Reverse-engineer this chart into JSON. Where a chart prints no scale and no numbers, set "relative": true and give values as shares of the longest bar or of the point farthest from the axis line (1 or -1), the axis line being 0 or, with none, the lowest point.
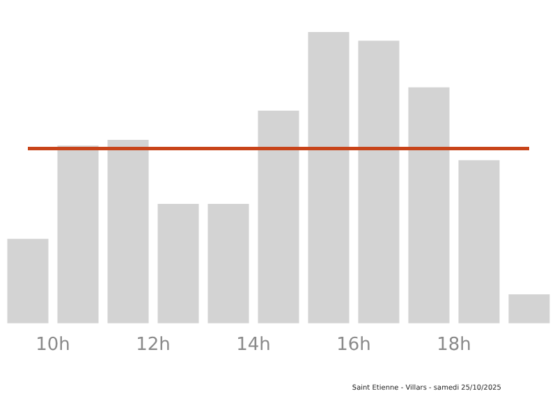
{
  "chart_data": {
    "type": "bar",
    "relative": true,
    "color": "#d3d3d3",
    "x": [
      9.5,
      10.5,
      11.5,
      12.5,
      13.5,
      14.5,
      15.5,
      16.5,
      17.5,
      18.5,
      19.5
    ],
    "values": [
      0.29,
      0.61,
      0.63,
      0.41,
      0.41,
      0.73,
      1,
      0.97,
      0.81,
      0.56,
      0.1
    ],
    "xlim": [
      9,
      20
    ],
    "xticks": [
      {
        "value": 10,
        "label": "10h"
      },
      {
        "value": 12,
        "label": "12h"
      },
      {
        "value": 14,
        "label": "14h"
      },
      {
        "value": 16,
        "label": "16h"
      },
      {
        "value": 18,
        "label": "18h"
      }
    ],
    "ref_lines": [
      {
        "axis": "y",
        "value": 0.6,
        "color": "#c8441a"
      }
    ],
    "annotations": [
      "Saint Etienne - Villars - samedi 25/10/2025"
    ]
  }
}
